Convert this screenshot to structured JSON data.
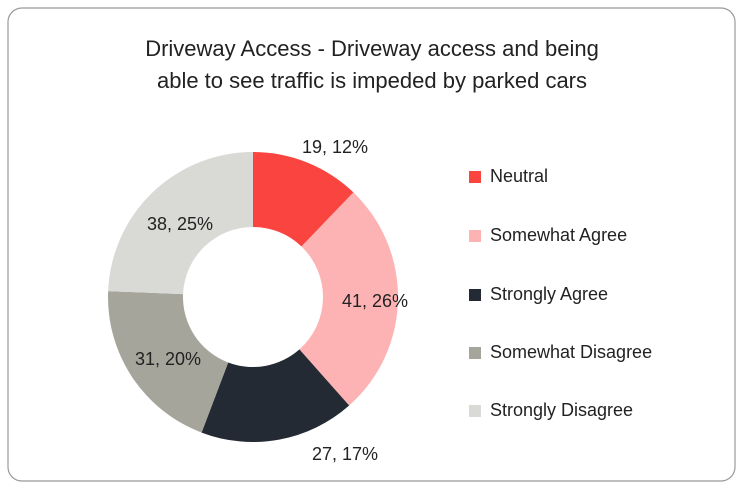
{
  "chart_data": {
    "type": "donut",
    "title": [
      "Driveway Access - Driveway access and being",
      "able to see traffic is impeded by parked cars"
    ],
    "categories": [
      "Neutral",
      "Somewhat Agree",
      "Strongly Agree",
      "Somewhat Disagree",
      "Strongly Disagree"
    ],
    "values": [
      19,
      41,
      27,
      31,
      38
    ],
    "value_labels": [
      "19, 12%",
      "41, 26%",
      "27, 17%",
      "31, 20%",
      "38, 25%"
    ],
    "colors": [
      "#fa4440",
      "#fdb3b3",
      "#232a33",
      "#a6a59c",
      "#d9d9d6"
    ],
    "legend": "right"
  }
}
